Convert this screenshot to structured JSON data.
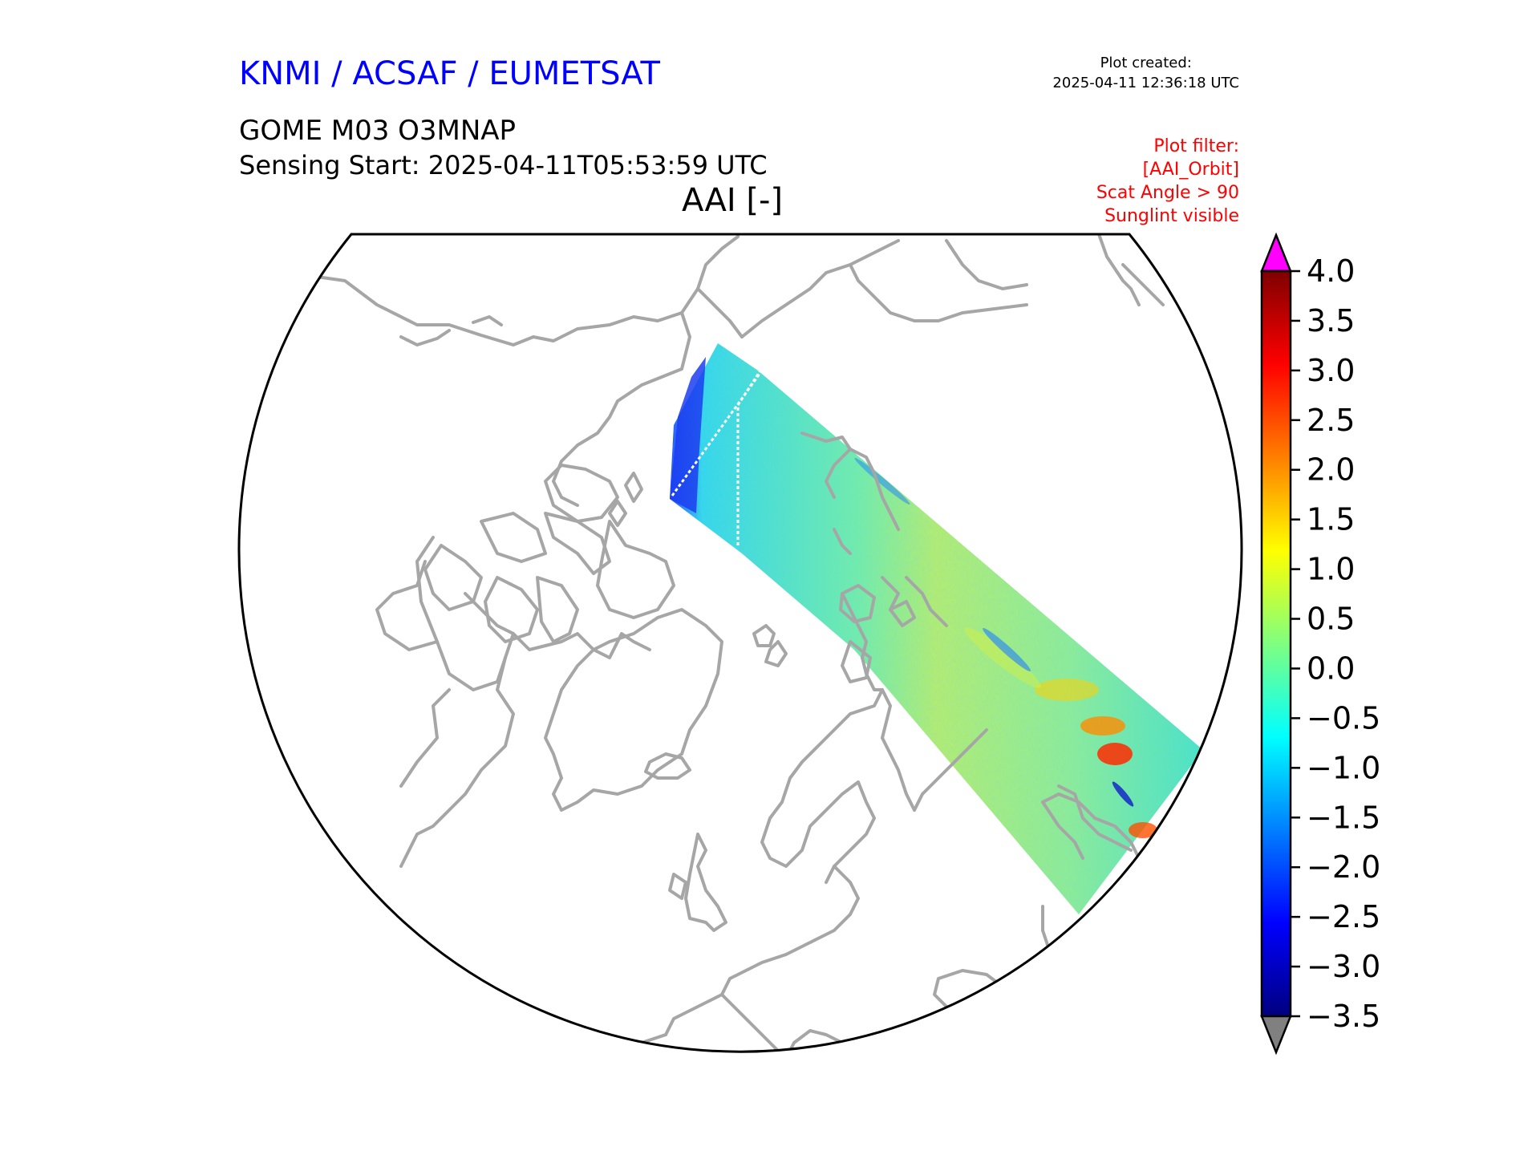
{
  "header": {
    "organization": "KNMI / ACSAF / EUMETSAT",
    "product": "GOME M03 O3MNAP",
    "sensing_start": "Sensing Start: 2025-04-11T05:53:59 UTC",
    "map_title": "AAI [-]",
    "plot_created_label": "Plot created:",
    "plot_created_time": "2025-04-11 12:36:18 UTC"
  },
  "filter": {
    "title": "Plot filter:",
    "lines": [
      "[AAI_Orbit]",
      "Scat Angle > 90",
      "Sunglint visible"
    ]
  },
  "colorbar": {
    "label": "AAI [-]",
    "min": -3.5,
    "max": 4.0,
    "ticks": [
      "4.0",
      "3.5",
      "3.0",
      "2.5",
      "2.0",
      "1.5",
      "1.0",
      "0.5",
      "0.0",
      "−0.5",
      "−1.0",
      "−1.5",
      "−2.0",
      "−2.5",
      "−3.0",
      "−3.5"
    ],
    "over_color": "#ff00ff",
    "under_color": "#808080",
    "colormap": "jet"
  },
  "map": {
    "projection": "north-polar-stereographic",
    "coastline_color": "#a6a6a6",
    "border_color": "#000000"
  }
}
